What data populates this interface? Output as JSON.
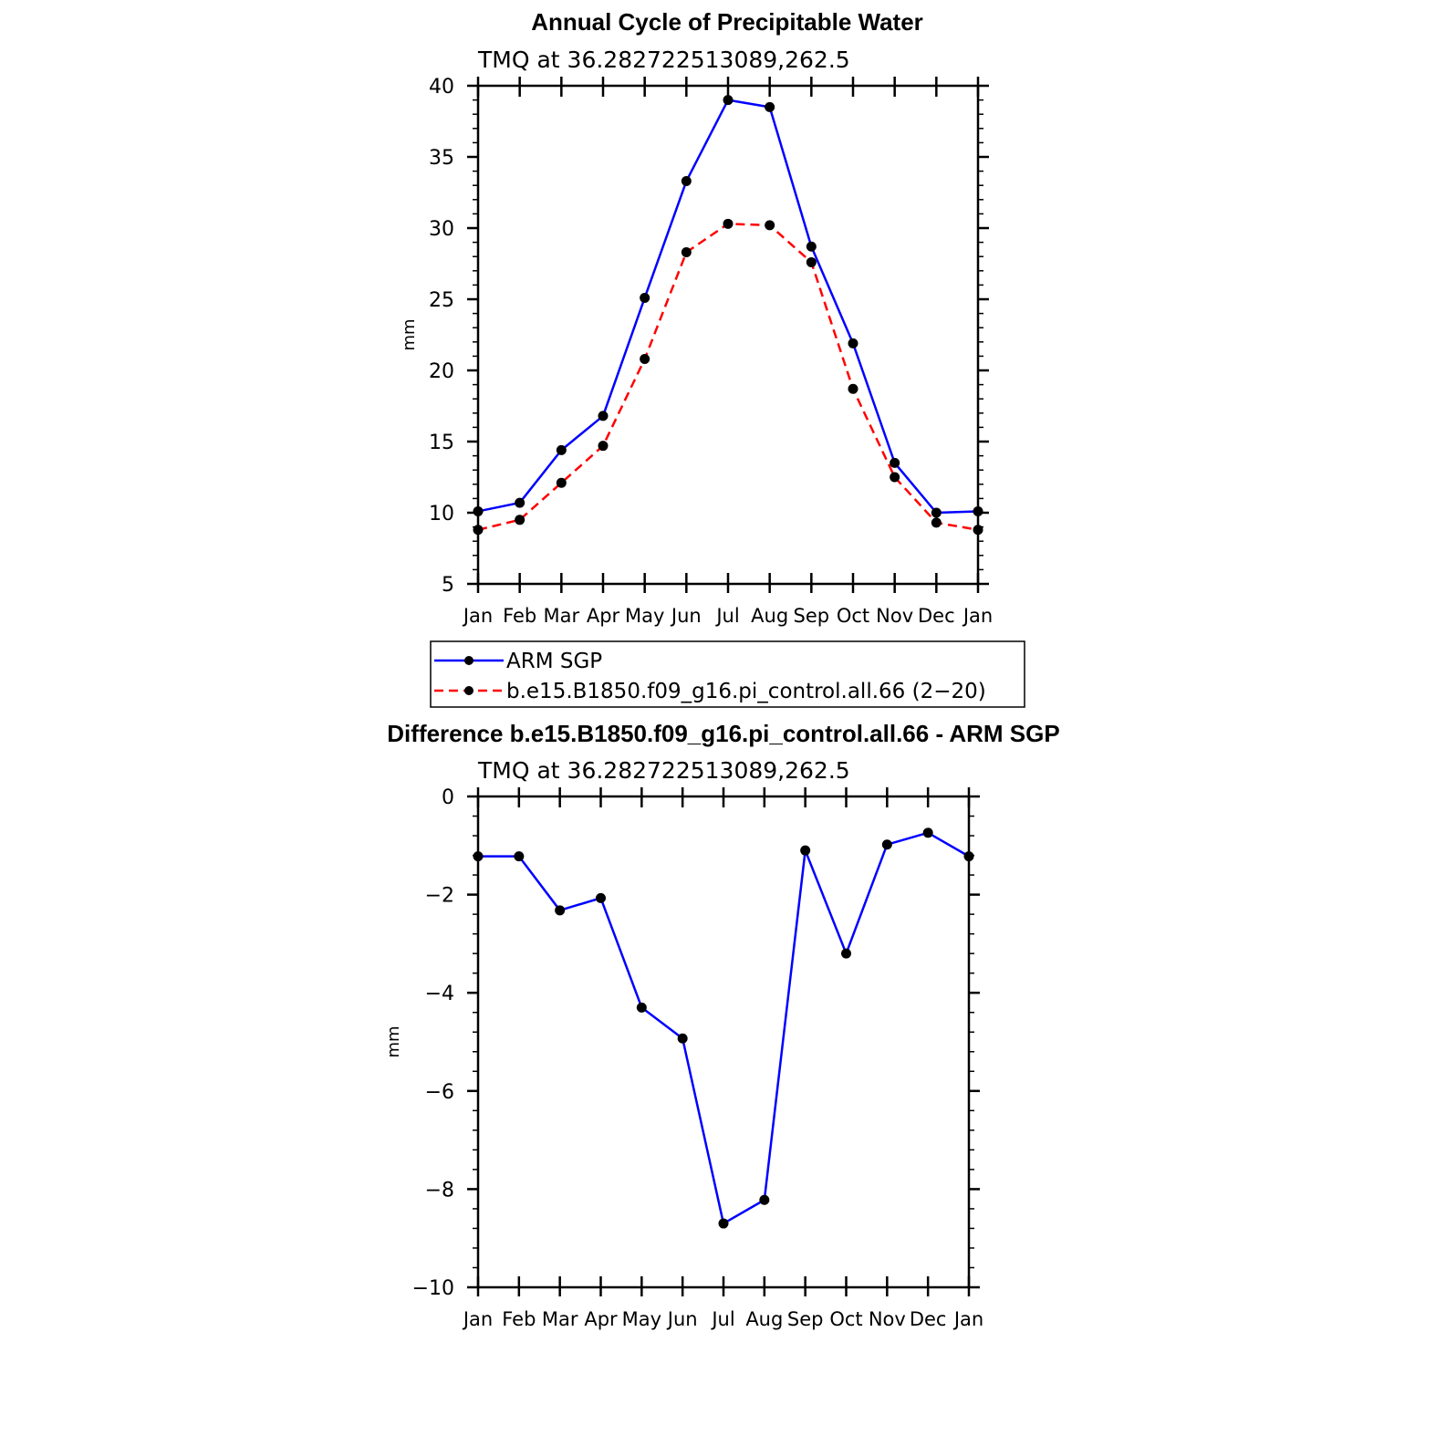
{
  "chart_data": [
    {
      "type": "line",
      "title": "Annual Cycle of Precipitable Water",
      "subtitle": "TMQ at 36.282722513089,262.5",
      "xlabel": "",
      "ylabel": "mm",
      "categories": [
        "Jan",
        "Feb",
        "Mar",
        "Apr",
        "May",
        "Jun",
        "Jul",
        "Aug",
        "Sep",
        "Oct",
        "Nov",
        "Dec",
        "Jan"
      ],
      "ylim": [
        5,
        40
      ],
      "yticks": [
        5,
        10,
        15,
        20,
        25,
        30,
        35,
        40
      ],
      "series": [
        {
          "name": "ARM SGP",
          "color": "#0000ff",
          "dash": "solid",
          "values": [
            10.1,
            10.7,
            14.4,
            16.8,
            25.1,
            33.3,
            39.0,
            38.5,
            28.7,
            21.9,
            13.5,
            10.0,
            10.1
          ]
        },
        {
          "name": "b.e15.B1850.f09_g16.pi_control.all.66 (2−20)",
          "color": "#ff0000",
          "dash": "dashed",
          "values": [
            8.8,
            9.5,
            12.1,
            14.7,
            20.8,
            28.3,
            30.3,
            30.2,
            27.6,
            18.7,
            12.5,
            9.3,
            8.8
          ]
        }
      ],
      "legend_placement": "bottom"
    },
    {
      "type": "line",
      "title": "Difference b.e15.B1850.f09_g16.pi_control.all.66 - ARM SGP",
      "subtitle": "TMQ at 36.282722513089,262.5",
      "xlabel": "",
      "ylabel": "mm",
      "categories": [
        "Jan",
        "Feb",
        "Mar",
        "Apr",
        "May",
        "Jun",
        "Jul",
        "Aug",
        "Sep",
        "Oct",
        "Nov",
        "Dec",
        "Jan"
      ],
      "ylim": [
        -10,
        0
      ],
      "yticks": [
        0,
        -2,
        -4,
        -6,
        -8,
        -10
      ],
      "ytick_labels": [
        "0",
        "−2",
        "−4",
        "−6",
        "−8",
        "−10"
      ],
      "series": [
        {
          "name": "Difference",
          "color": "#0000ff",
          "dash": "solid",
          "values": [
            -1.22,
            -1.22,
            -2.32,
            -2.07,
            -4.3,
            -4.93,
            -8.7,
            -8.22,
            -1.1,
            -3.2,
            -0.98,
            -0.74,
            -1.22
          ]
        }
      ]
    }
  ]
}
